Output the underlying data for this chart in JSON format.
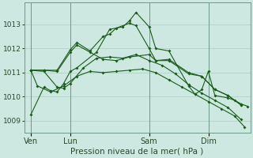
{
  "background_color": "#cce8e0",
  "grid_color": "#aaccc4",
  "line_color": "#1a5c1a",
  "xlabel": "Pression niveau de la mer( hPa )",
  "ylim": [
    1008.5,
    1013.9
  ],
  "yticks": [
    1009,
    1010,
    1011,
    1012,
    1013
  ],
  "xtick_labels": [
    "Ven",
    "Lun",
    "Sam",
    "Dim"
  ],
  "xtick_positions": [
    8,
    56,
    152,
    224
  ],
  "series": [
    {
      "x": [
        8,
        24,
        32,
        40,
        48,
        56,
        64,
        88,
        104,
        120,
        128,
        136,
        152,
        160,
        176,
        200,
        208,
        216,
        224,
        232,
        248,
        256,
        264,
        272
      ],
      "y": [
        1009.25,
        1010.4,
        1010.25,
        1010.2,
        1010.55,
        1011.05,
        1011.2,
        1011.85,
        1012.8,
        1012.9,
        1013.15,
        1013.5,
        1012.9,
        1012.0,
        1011.9,
        1010.45,
        1010.1,
        1010.3,
        1011.05,
        1010.05,
        1009.95,
        1009.85,
        1009.7,
        1009.6
      ]
    },
    {
      "x": [
        8,
        24,
        40,
        56,
        64,
        80,
        96,
        104,
        112,
        128,
        136,
        152,
        160,
        176,
        200,
        216,
        232,
        248,
        264
      ],
      "y": [
        1011.1,
        1011.1,
        1011.1,
        1011.95,
        1012.25,
        1011.9,
        1012.5,
        1012.6,
        1012.85,
        1013.05,
        1012.95,
        1012.0,
        1011.5,
        1011.55,
        1011.0,
        1010.85,
        1010.3,
        1010.05,
        1009.65
      ]
    },
    {
      "x": [
        8,
        24,
        40,
        56,
        64,
        80,
        96,
        112,
        128,
        152,
        160,
        176,
        200,
        216,
        232,
        248,
        264
      ],
      "y": [
        1011.1,
        1011.1,
        1011.05,
        1011.85,
        1012.15,
        1011.85,
        1011.55,
        1011.5,
        1011.65,
        1011.75,
        1011.5,
        1011.5,
        1010.95,
        1010.85,
        1010.3,
        1010.05,
        1009.65
      ]
    },
    {
      "x": [
        8,
        24,
        40,
        48,
        56,
        72,
        88,
        104,
        120,
        136,
        152,
        168,
        184,
        200,
        216,
        232,
        248,
        264
      ],
      "y": [
        1011.1,
        1011.05,
        1010.4,
        1010.35,
        1010.55,
        1011.2,
        1011.6,
        1011.65,
        1011.6,
        1011.75,
        1011.5,
        1011.3,
        1010.95,
        1010.5,
        1010.15,
        1009.85,
        1009.55,
        1009.05
      ]
    },
    {
      "x": [
        8,
        16,
        32,
        48,
        64,
        80,
        96,
        112,
        128,
        144,
        160,
        176,
        192,
        208,
        224,
        240,
        256,
        268
      ],
      "y": [
        1011.1,
        1010.45,
        1010.2,
        1010.45,
        1010.85,
        1011.05,
        1011.0,
        1011.05,
        1011.1,
        1011.15,
        1011.0,
        1010.7,
        1010.4,
        1010.1,
        1009.8,
        1009.5,
        1009.2,
        1008.75
      ]
    }
  ],
  "vlines": [
    8,
    56,
    152,
    224
  ],
  "xlim": [
    0,
    275
  ]
}
